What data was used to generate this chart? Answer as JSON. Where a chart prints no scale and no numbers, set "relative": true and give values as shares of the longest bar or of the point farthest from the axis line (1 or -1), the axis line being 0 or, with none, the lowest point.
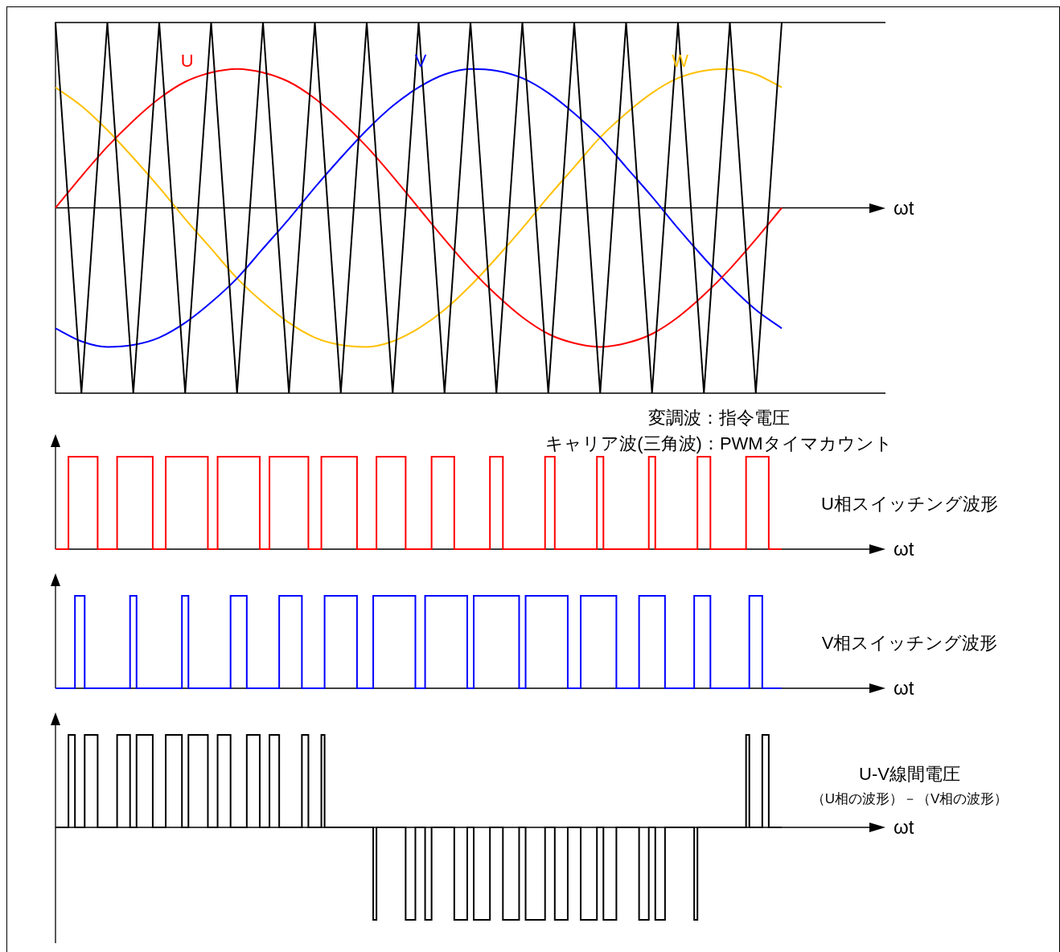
{
  "chart_data": [
    {
      "type": "line",
      "relative": true,
      "xlabel": "ωt",
      "marker": "none",
      "annotations": [
        "変調波：指令電圧",
        "キャリア波(三角波)：PWMタイマカウント"
      ],
      "categories": [
        null,
        null,
        null,
        null,
        null,
        null,
        null,
        null,
        null,
        null,
        null,
        null,
        null,
        null,
        null,
        null,
        null,
        null,
        null,
        null,
        null,
        null,
        null,
        null,
        null,
        null,
        null,
        null,
        null
      ],
      "series": [
        {
          "color": "#000000",
          "values": [
            1,
            -1,
            1,
            -1,
            1,
            -1,
            1,
            -1,
            1,
            -1,
            1,
            -1,
            1,
            -1,
            1,
            -1,
            1,
            -1,
            1,
            -1,
            1,
            -1,
            1,
            -1,
            1,
            -1,
            1,
            -1,
            1
          ]
        },
        {
          "name": "U",
          "color": "#ff0000",
          "values": [
            0,
            0.17,
            0.33,
            0.47,
            0.59,
            0.68,
            0.73,
            0.75,
            0.73,
            0.68,
            0.59,
            0.47,
            0.33,
            0.17,
            0,
            -0.17,
            -0.33,
            -0.47,
            -0.59,
            -0.68,
            -0.73,
            -0.75,
            -0.73,
            -0.68,
            -0.59,
            -0.47,
            -0.33,
            -0.17,
            0
          ]
        },
        {
          "name": "V",
          "color": "#0000ff",
          "values": [
            -0.65,
            -0.72,
            -0.75,
            -0.74,
            -0.7,
            -0.62,
            -0.51,
            -0.38,
            -0.22,
            -0.06,
            0.11,
            0.27,
            0.42,
            0.55,
            0.65,
            0.72,
            0.75,
            0.74,
            0.7,
            0.62,
            0.51,
            0.38,
            0.22,
            0.06,
            -0.11,
            -0.27,
            -0.42,
            -0.55,
            -0.65
          ]
        },
        {
          "name": "W",
          "color": "#ffc000",
          "values": [
            0.65,
            0.55,
            0.42,
            0.27,
            0.11,
            -0.06,
            -0.22,
            -0.38,
            -0.51,
            -0.62,
            -0.7,
            -0.74,
            -0.75,
            -0.72,
            -0.65,
            -0.55,
            -0.42,
            -0.27,
            -0.11,
            0.06,
            0.22,
            0.38,
            0.51,
            0.62,
            0.7,
            0.74,
            0.75,
            0.72,
            0.65
          ]
        }
      ]
    },
    {
      "type": "step",
      "relative": true,
      "xlabel": "ωt",
      "marker": "none",
      "categories": [
        null,
        null,
        null,
        null,
        null,
        null,
        null,
        null,
        null,
        null,
        null,
        null,
        null,
        null,
        null,
        null,
        null,
        null,
        null,
        null,
        null,
        null,
        null,
        null,
        null,
        null,
        null,
        null,
        null,
        null,
        null,
        null,
        null,
        null,
        null,
        null,
        null,
        null,
        null,
        null,
        null,
        null,
        null,
        null,
        null,
        null,
        null,
        null,
        null,
        null,
        null,
        null,
        null,
        null,
        null,
        null,
        null,
        null,
        null,
        null,
        null,
        null,
        null,
        null,
        null,
        null,
        null,
        null,
        null,
        null,
        null,
        null,
        null,
        null,
        null,
        null,
        null,
        null,
        null,
        null,
        null,
        null,
        null,
        null,
        null,
        null,
        null,
        null,
        null,
        null,
        null,
        null,
        null,
        null,
        null,
        null,
        null,
        null,
        null,
        null,
        null,
        null,
        null,
        null,
        null,
        null,
        null,
        null,
        null,
        null,
        null,
        null,
        null,
        null,
        null,
        null,
        null,
        null,
        null,
        null,
        null,
        null,
        null,
        null,
        null,
        null,
        null,
        null,
        null,
        null,
        null,
        null,
        null,
        null,
        null,
        null,
        null,
        null,
        null,
        null,
        null,
        null,
        null,
        null,
        null,
        null,
        null,
        null,
        null,
        null,
        null,
        null,
        null,
        null,
        null,
        null,
        null,
        null,
        null,
        null,
        null,
        null,
        null,
        null,
        null,
        null,
        null,
        null,
        null,
        null,
        null,
        null,
        null,
        null,
        null,
        null,
        null,
        null,
        null,
        null,
        null,
        null,
        null,
        null,
        null,
        null,
        null,
        null,
        null,
        null,
        null,
        null,
        null,
        null,
        null,
        null,
        null,
        null,
        null,
        null,
        null,
        null,
        null,
        null,
        null,
        null,
        null,
        null,
        null,
        null,
        null,
        null,
        null,
        null,
        null,
        null,
        null,
        null,
        null,
        null,
        null,
        null,
        null,
        null,
        null
      ],
      "series": [
        {
          "name": "U相スイッチング波形",
          "color": "#ff0000",
          "values": [
            0,
            0,
            0,
            0,
            1,
            1,
            1,
            1,
            1,
            1,
            1,
            1,
            1,
            0,
            0,
            0,
            0,
            0,
            0,
            1,
            1,
            1,
            1,
            1,
            1,
            1,
            1,
            1,
            1,
            1,
            0,
            0,
            0,
            0,
            1,
            1,
            1,
            1,
            1,
            1,
            1,
            1,
            1,
            1,
            1,
            1,
            1,
            0,
            0,
            0,
            1,
            1,
            1,
            1,
            1,
            1,
            1,
            1,
            1,
            1,
            1,
            1,
            1,
            0,
            0,
            0,
            1,
            1,
            1,
            1,
            1,
            1,
            1,
            1,
            1,
            1,
            1,
            1,
            0,
            0,
            0,
            0,
            1,
            1,
            1,
            1,
            1,
            1,
            1,
            1,
            1,
            1,
            1,
            0,
            0,
            0,
            0,
            0,
            0,
            1,
            1,
            1,
            1,
            1,
            1,
            1,
            1,
            1,
            0,
            0,
            0,
            0,
            0,
            0,
            0,
            0,
            1,
            1,
            1,
            1,
            1,
            1,
            1,
            0,
            0,
            0,
            0,
            0,
            0,
            0,
            0,
            0,
            0,
            0,
            1,
            1,
            1,
            1,
            0,
            0,
            0,
            0,
            0,
            0,
            0,
            0,
            0,
            0,
            0,
            0,
            0,
            1,
            1,
            1,
            0,
            0,
            0,
            0,
            0,
            0,
            0,
            0,
            0,
            0,
            0,
            0,
            0,
            1,
            1,
            0,
            0,
            0,
            0,
            0,
            0,
            0,
            0,
            0,
            0,
            0,
            0,
            0,
            0,
            1,
            1,
            0,
            0,
            0,
            0,
            0,
            0,
            0,
            0,
            0,
            0,
            0,
            0,
            0,
            1,
            1,
            1,
            1,
            0,
            0,
            0,
            0,
            0,
            0,
            0,
            0,
            0,
            0,
            0,
            1,
            1,
            1,
            1,
            1,
            1,
            1,
            0,
            0,
            0,
            0,
            0
          ]
        }
      ]
    },
    {
      "type": "step",
      "relative": true,
      "xlabel": "ωt",
      "marker": "none",
      "categories": [
        null,
        null,
        null,
        null,
        null,
        null,
        null,
        null,
        null,
        null,
        null,
        null,
        null,
        null,
        null,
        null,
        null,
        null,
        null,
        null,
        null,
        null,
        null,
        null,
        null,
        null,
        null,
        null,
        null,
        null,
        null,
        null,
        null,
        null,
        null,
        null,
        null,
        null,
        null,
        null,
        null,
        null,
        null,
        null,
        null,
        null,
        null,
        null,
        null,
        null,
        null,
        null,
        null,
        null,
        null,
        null,
        null,
        null,
        null,
        null,
        null,
        null,
        null,
        null,
        null,
        null,
        null,
        null,
        null,
        null,
        null,
        null,
        null,
        null,
        null,
        null,
        null,
        null,
        null,
        null,
        null,
        null,
        null,
        null,
        null,
        null,
        null,
        null,
        null,
        null,
        null,
        null,
        null,
        null,
        null,
        null,
        null,
        null,
        null,
        null,
        null,
        null,
        null,
        null,
        null,
        null,
        null,
        null,
        null,
        null,
        null,
        null,
        null,
        null,
        null,
        null,
        null,
        null,
        null,
        null,
        null,
        null,
        null,
        null,
        null,
        null,
        null,
        null,
        null,
        null,
        null,
        null,
        null,
        null,
        null,
        null,
        null,
        null,
        null,
        null,
        null,
        null,
        null,
        null,
        null,
        null,
        null,
        null,
        null,
        null,
        null,
        null,
        null,
        null,
        null,
        null,
        null,
        null,
        null,
        null,
        null,
        null,
        null,
        null,
        null,
        null,
        null,
        null,
        null,
        null,
        null,
        null,
        null,
        null,
        null,
        null,
        null,
        null,
        null,
        null,
        null,
        null,
        null,
        null,
        null,
        null,
        null,
        null,
        null,
        null,
        null,
        null,
        null,
        null,
        null,
        null,
        null,
        null,
        null,
        null,
        null,
        null,
        null,
        null,
        null,
        null,
        null,
        null,
        null,
        null,
        null,
        null,
        null,
        null,
        null,
        null,
        null,
        null,
        null,
        null,
        null,
        null,
        null,
        null,
        null
      ],
      "series": [
        {
          "name": "V相スイッチング波形",
          "color": "#0000ff",
          "values": [
            0,
            0,
            0,
            0,
            0,
            0,
            1,
            1,
            1,
            0,
            0,
            0,
            0,
            0,
            0,
            0,
            0,
            0,
            0,
            0,
            0,
            0,
            0,
            1,
            1,
            0,
            0,
            0,
            0,
            0,
            0,
            0,
            0,
            0,
            0,
            0,
            0,
            0,
            0,
            1,
            1,
            0,
            0,
            0,
            0,
            0,
            0,
            0,
            0,
            0,
            0,
            0,
            0,
            0,
            1,
            1,
            1,
            1,
            1,
            0,
            0,
            0,
            0,
            0,
            0,
            0,
            0,
            0,
            0,
            1,
            1,
            1,
            1,
            1,
            1,
            1,
            0,
            0,
            0,
            0,
            0,
            0,
            0,
            1,
            1,
            1,
            1,
            1,
            1,
            1,
            1,
            1,
            1,
            0,
            0,
            0,
            0,
            0,
            1,
            1,
            1,
            1,
            1,
            1,
            1,
            1,
            1,
            1,
            1,
            1,
            1,
            0,
            0,
            0,
            1,
            1,
            1,
            1,
            1,
            1,
            1,
            1,
            1,
            1,
            1,
            1,
            1,
            0,
            0,
            1,
            1,
            1,
            1,
            1,
            1,
            1,
            1,
            1,
            1,
            1,
            1,
            1,
            1,
            0,
            0,
            1,
            1,
            1,
            1,
            1,
            1,
            1,
            1,
            1,
            1,
            1,
            1,
            1,
            0,
            0,
            0,
            0,
            1,
            1,
            1,
            1,
            1,
            1,
            1,
            1,
            1,
            1,
            1,
            0,
            0,
            0,
            0,
            0,
            0,
            0,
            1,
            1,
            1,
            1,
            1,
            1,
            1,
            1,
            0,
            0,
            0,
            0,
            0,
            0,
            0,
            0,
            0,
            1,
            1,
            1,
            1,
            1,
            0,
            0,
            0,
            0,
            0,
            0,
            0,
            0,
            0,
            0,
            0,
            0,
            1,
            1,
            1,
            1,
            0,
            0,
            0,
            0,
            0,
            0,
            0
          ]
        }
      ]
    },
    {
      "type": "step",
      "relative": true,
      "xlabel": "ωt",
      "annotations": [
        "（U相の波形）－（V相の波形）"
      ],
      "marker": "none",
      "categories": [
        null,
        null,
        null,
        null,
        null,
        null,
        null,
        null,
        null,
        null,
        null,
        null,
        null,
        null,
        null,
        null,
        null,
        null,
        null,
        null,
        null,
        null,
        null,
        null,
        null,
        null,
        null,
        null,
        null,
        null,
        null,
        null,
        null,
        null,
        null,
        null,
        null,
        null,
        null,
        null,
        null,
        null,
        null,
        null,
        null,
        null,
        null,
        null,
        null,
        null,
        null,
        null,
        null,
        null,
        null,
        null,
        null,
        null,
        null,
        null,
        null,
        null,
        null,
        null,
        null,
        null,
        null,
        null,
        null,
        null,
        null,
        null,
        null,
        null,
        null,
        null,
        null,
        null,
        null,
        null,
        null,
        null,
        null,
        null,
        null,
        null,
        null,
        null,
        null,
        null,
        null,
        null,
        null,
        null,
        null,
        null,
        null,
        null,
        null,
        null,
        null,
        null,
        null,
        null,
        null,
        null,
        null,
        null,
        null,
        null,
        null,
        null,
        null,
        null,
        null,
        null,
        null,
        null,
        null,
        null,
        null,
        null,
        null,
        null,
        null,
        null,
        null,
        null,
        null,
        null,
        null,
        null,
        null,
        null,
        null,
        null,
        null,
        null,
        null,
        null,
        null,
        null,
        null,
        null,
        null,
        null,
        null,
        null,
        null,
        null,
        null,
        null,
        null,
        null,
        null,
        null,
        null,
        null,
        null,
        null,
        null,
        null,
        null,
        null,
        null,
        null,
        null,
        null,
        null,
        null,
        null,
        null,
        null,
        null,
        null,
        null,
        null,
        null,
        null,
        null,
        null,
        null,
        null,
        null,
        null,
        null,
        null,
        null,
        null,
        null,
        null,
        null,
        null,
        null,
        null,
        null,
        null,
        null,
        null,
        null,
        null,
        null,
        null,
        null,
        null,
        null,
        null,
        null,
        null,
        null,
        null,
        null,
        null,
        null,
        null,
        null,
        null,
        null,
        null,
        null,
        null,
        null,
        null,
        null,
        null
      ],
      "series": [
        {
          "name": "U-V線間電圧",
          "color": "#000000",
          "values": [
            0,
            0,
            0,
            0,
            1,
            1,
            0,
            0,
            0,
            1,
            1,
            1,
            1,
            0,
            0,
            0,
            0,
            0,
            0,
            1,
            1,
            1,
            1,
            0,
            0,
            1,
            1,
            1,
            1,
            1,
            0,
            0,
            0,
            0,
            1,
            1,
            1,
            1,
            1,
            0,
            0,
            1,
            1,
            1,
            1,
            1,
            1,
            0,
            0,
            0,
            1,
            1,
            1,
            1,
            0,
            0,
            0,
            0,
            0,
            1,
            1,
            1,
            1,
            0,
            0,
            0,
            1,
            1,
            1,
            0,
            0,
            0,
            0,
            0,
            0,
            0,
            1,
            1,
            0,
            0,
            0,
            0,
            1,
            0,
            0,
            0,
            0,
            0,
            0,
            0,
            0,
            0,
            0,
            0,
            0,
            0,
            0,
            0,
            -1,
            0,
            0,
            0,
            0,
            0,
            0,
            0,
            0,
            0,
            -1,
            -1,
            -1,
            0,
            0,
            0,
            -1,
            -1,
            0,
            0,
            0,
            0,
            0,
            0,
            0,
            -1,
            -1,
            -1,
            -1,
            0,
            0,
            -1,
            -1,
            -1,
            -1,
            -1,
            0,
            0,
            0,
            0,
            -1,
            -1,
            -1,
            -1,
            -1,
            0,
            0,
            -1,
            -1,
            -1,
            -1,
            -1,
            -1,
            0,
            0,
            0,
            -1,
            -1,
            -1,
            -1,
            0,
            0,
            0,
            0,
            -1,
            -1,
            -1,
            -1,
            -1,
            0,
            0,
            -1,
            -1,
            -1,
            -1,
            0,
            0,
            0,
            0,
            0,
            0,
            0,
            -1,
            -1,
            -1,
            0,
            0,
            -1,
            -1,
            -1,
            0,
            0,
            0,
            0,
            0,
            0,
            0,
            0,
            0,
            -1,
            0,
            0,
            0,
            0,
            0,
            0,
            0,
            0,
            0,
            0,
            0,
            0,
            0,
            0,
            0,
            1,
            0,
            0,
            0,
            0,
            1,
            1,
            0,
            0,
            0,
            0,
            0
          ]
        }
      ]
    }
  ]
}
